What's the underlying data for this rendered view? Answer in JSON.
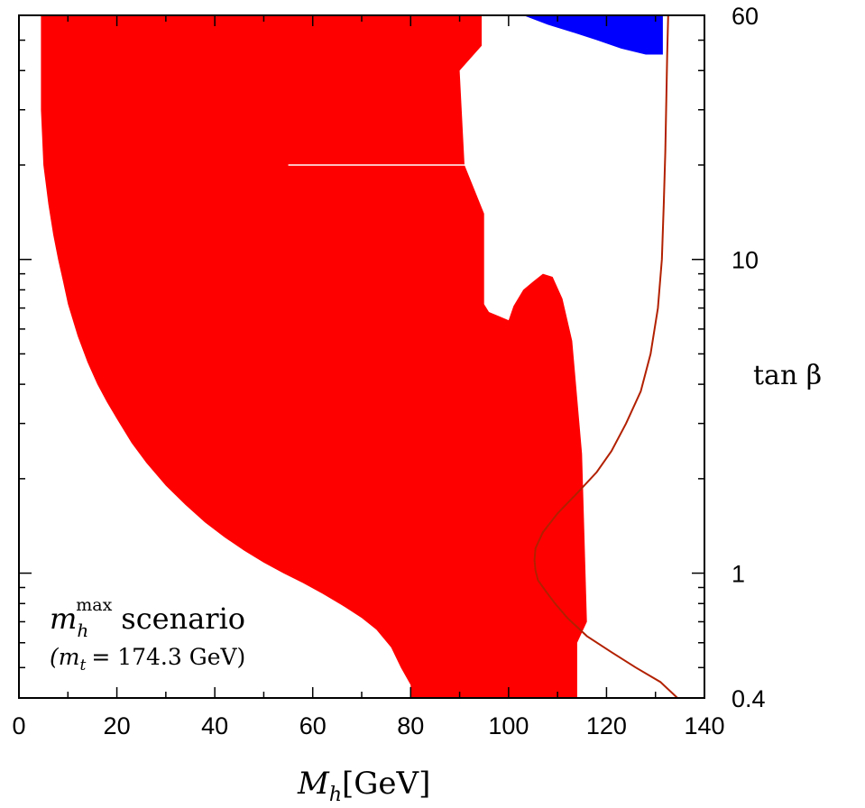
{
  "chart_data": {
    "type": "area",
    "xlabel_main": "M",
    "xlabel_sub": "h",
    "xlabel_unit": "[GeV]",
    "ylabel": "tan β",
    "yscale": "log",
    "xlim": [
      0,
      140
    ],
    "ylim": [
      0.4,
      60
    ],
    "x_ticks": [
      "0",
      "20",
      "40",
      "60",
      "80",
      "100",
      "120",
      "140"
    ],
    "x_tick_values": [
      0,
      20,
      40,
      60,
      80,
      100,
      120,
      140
    ],
    "y_ticks": [
      "60",
      "10",
      "1",
      "0.4"
    ],
    "y_tick_values": [
      60,
      10,
      1,
      0.4
    ],
    "annotation_line1_main": "m",
    "annotation_line1_sub": "h",
    "annotation_line1_sup": "max",
    "annotation_line1_rest": "scenario",
    "annotation_line2": "(m",
    "annotation_line2_sub": "t",
    "annotation_line2_rest": "= 174.3 GeV)",
    "colors": {
      "excluded_red": "#ff0000",
      "excluded_blue": "#0000ff",
      "boundary": "#b22000",
      "frame": "#000000"
    },
    "series": [
      {
        "name": "",
        "kind": "red-region",
        "x": [
          4.5,
          4.5,
          5,
          6,
          7,
          8,
          9,
          10,
          12,
          14,
          16,
          18,
          20,
          23,
          26,
          30,
          34,
          38,
          42,
          46,
          50,
          54,
          58,
          62,
          66,
          70,
          73,
          76,
          78,
          80,
          80,
          114,
          114,
          116,
          115,
          113,
          111,
          109,
          107,
          105,
          103,
          101,
          100,
          98,
          96,
          95,
          95,
          91,
          90,
          94.5,
          94.5,
          94.5
        ],
        "y": [
          60,
          30,
          20,
          15,
          12,
          10,
          8.5,
          7.2,
          5.7,
          4.7,
          4,
          3.5,
          3.1,
          2.6,
          2.25,
          1.9,
          1.65,
          1.45,
          1.3,
          1.18,
          1.08,
          1,
          0.93,
          0.86,
          0.79,
          0.72,
          0.66,
          0.58,
          0.5,
          0.44,
          0.4,
          0.4,
          0.6,
          0.7,
          2.4,
          5.5,
          7.5,
          8.8,
          9,
          8.5,
          8,
          7.1,
          6.4,
          6.6,
          6.8,
          7.2,
          14,
          20,
          40,
          48,
          57,
          60
        ]
      },
      {
        "name": "",
        "kind": "blue-region",
        "x": [
          95,
          98,
          98,
          103,
          108,
          113,
          118,
          123,
          128,
          131.5,
          131.5
        ],
        "y": [
          60,
          60,
          60,
          60,
          56,
          53,
          50,
          47,
          45,
          45,
          60
        ]
      },
      {
        "name": "",
        "kind": "boundary-curve",
        "x": [
          134.5,
          131,
          126,
          121,
          116,
          112,
          109.5,
          107.5,
          106,
          105.5,
          105.3,
          105.5,
          107,
          110,
          114,
          118,
          121,
          124,
          127,
          129,
          130.5,
          131.3,
          131.7,
          132,
          132.2,
          132.4,
          132.6
        ],
        "y": [
          0.4,
          0.45,
          0.5,
          0.56,
          0.63,
          0.72,
          0.8,
          0.88,
          0.95,
          1.02,
          1.1,
          1.2,
          1.35,
          1.55,
          1.8,
          2.1,
          2.45,
          3,
          3.8,
          5,
          7,
          10,
          15,
          22,
          32,
          45,
          60
        ]
      }
    ]
  }
}
